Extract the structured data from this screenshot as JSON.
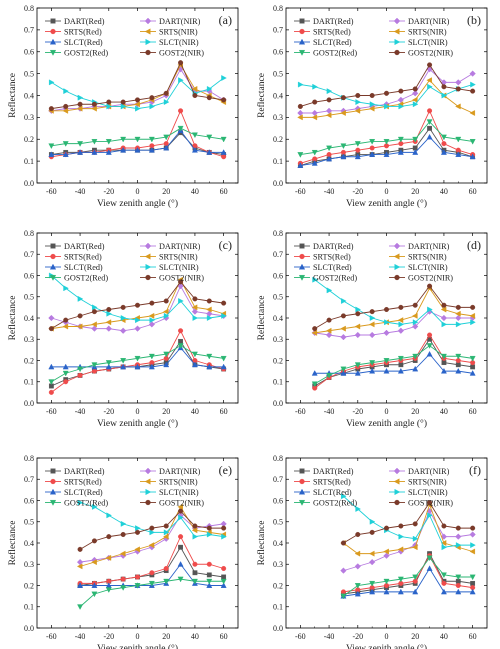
{
  "figure": {
    "shared_xlabel": "View zenith angle (°)",
    "shared_ylabel": "Reflectance"
  },
  "legend_entries": [
    {
      "name": "DART(Red)",
      "color": "#555555",
      "marker": "square"
    },
    {
      "name": "DART(NIR)",
      "color": "#b77be0",
      "marker": "diamond"
    },
    {
      "name": "SRTS(Red)",
      "color": "#ef4b4b",
      "marker": "circle"
    },
    {
      "name": "SRTS(NIR)",
      "color": "#d99a1e",
      "marker": "triangle-left"
    },
    {
      "name": "SLCT(Red)",
      "color": "#2a63c9",
      "marker": "triangle-up"
    },
    {
      "name": "SLCT(NIR)",
      "color": "#1fd0d8",
      "marker": "triangle-right"
    },
    {
      "name": "GOST2(Red)",
      "color": "#2bb673",
      "marker": "triangle-down"
    },
    {
      "name": "GOST2(NIR)",
      "color": "#7a3a2a",
      "marker": "circle"
    }
  ],
  "chart_data": [
    {
      "type": "line",
      "panel_label": "(a)",
      "xlabel": "View zenith angle (°)",
      "ylabel": "Reflectance",
      "xlim": [
        -70,
        70
      ],
      "ylim": [
        0.0,
        0.8
      ],
      "xticks": [
        -60,
        -40,
        -20,
        0,
        20,
        40,
        60
      ],
      "yticks": [
        0.0,
        0.1,
        0.2,
        0.3,
        0.4,
        0.5,
        0.6,
        0.7,
        0.8
      ],
      "x": [
        -60,
        -50,
        -40,
        -30,
        -20,
        -10,
        0,
        10,
        20,
        30,
        40,
        50,
        60
      ],
      "series": [
        {
          "name": "DART(Red)",
          "values": [
            0.13,
            0.14,
            0.14,
            0.15,
            0.15,
            0.15,
            0.15,
            0.15,
            0.16,
            0.23,
            0.16,
            0.14,
            0.13
          ]
        },
        {
          "name": "DART(NIR)",
          "values": [
            0.33,
            0.34,
            0.34,
            0.35,
            0.35,
            0.36,
            0.36,
            0.37,
            0.4,
            0.52,
            0.42,
            0.42,
            0.38
          ]
        },
        {
          "name": "SRTS(Red)",
          "values": [
            0.12,
            0.13,
            0.14,
            0.14,
            0.15,
            0.16,
            0.16,
            0.17,
            0.18,
            0.33,
            0.17,
            0.14,
            0.12
          ]
        },
        {
          "name": "SRTS(NIR)",
          "values": [
            0.33,
            0.33,
            0.34,
            0.34,
            0.35,
            0.35,
            0.36,
            0.38,
            0.41,
            0.54,
            0.43,
            0.4,
            0.37
          ]
        },
        {
          "name": "SLCT(Red)",
          "values": [
            0.13,
            0.13,
            0.14,
            0.14,
            0.14,
            0.15,
            0.15,
            0.15,
            0.16,
            0.24,
            0.15,
            0.14,
            0.14
          ]
        },
        {
          "name": "SLCT(NIR)",
          "values": [
            0.46,
            0.42,
            0.39,
            0.37,
            0.35,
            0.35,
            0.34,
            0.35,
            0.37,
            0.47,
            0.41,
            0.43,
            0.48
          ]
        },
        {
          "name": "GOST2(Red)",
          "values": [
            0.17,
            0.18,
            0.18,
            0.19,
            0.19,
            0.2,
            0.2,
            0.2,
            0.21,
            0.25,
            0.22,
            0.21,
            0.2
          ]
        },
        {
          "name": "GOST2(NIR)",
          "values": [
            0.34,
            0.35,
            0.36,
            0.36,
            0.37,
            0.37,
            0.38,
            0.39,
            0.41,
            0.55,
            0.4,
            0.39,
            0.38
          ]
        }
      ]
    },
    {
      "type": "line",
      "panel_label": "(b)",
      "xlabel": "View zenith angle (°)",
      "ylabel": "Reflectance",
      "xlim": [
        -70,
        70
      ],
      "ylim": [
        0.0,
        0.8
      ],
      "xticks": [
        -60,
        -40,
        -20,
        0,
        20,
        40,
        60
      ],
      "yticks": [
        0.0,
        0.1,
        0.2,
        0.3,
        0.4,
        0.5,
        0.6,
        0.7,
        0.8
      ],
      "x": [
        -60,
        -50,
        -40,
        -30,
        -20,
        -10,
        0,
        10,
        20,
        30,
        40,
        50,
        60
      ],
      "series": [
        {
          "name": "DART(Red)",
          "values": [
            0.08,
            0.1,
            0.11,
            0.12,
            0.13,
            0.13,
            0.14,
            0.15,
            0.16,
            0.25,
            0.15,
            0.14,
            0.12
          ]
        },
        {
          "name": "DART(NIR)",
          "values": [
            0.32,
            0.32,
            0.33,
            0.33,
            0.34,
            0.35,
            0.36,
            0.38,
            0.41,
            0.52,
            0.46,
            0.46,
            0.5
          ]
        },
        {
          "name": "SRTS(Red)",
          "values": [
            0.09,
            0.11,
            0.13,
            0.14,
            0.15,
            0.16,
            0.17,
            0.18,
            0.19,
            0.33,
            0.18,
            0.15,
            0.13
          ]
        },
        {
          "name": "SRTS(NIR)",
          "values": [
            0.3,
            0.3,
            0.31,
            0.32,
            0.33,
            0.34,
            0.35,
            0.36,
            0.38,
            0.47,
            0.4,
            0.35,
            0.32
          ]
        },
        {
          "name": "SLCT(Red)",
          "values": [
            0.08,
            0.09,
            0.11,
            0.12,
            0.12,
            0.13,
            0.13,
            0.14,
            0.14,
            0.21,
            0.14,
            0.13,
            0.12
          ]
        },
        {
          "name": "SLCT(NIR)",
          "values": [
            0.45,
            0.44,
            0.42,
            0.39,
            0.37,
            0.36,
            0.35,
            0.35,
            0.36,
            0.44,
            0.4,
            0.43,
            0.45
          ]
        },
        {
          "name": "GOST2(Red)",
          "values": [
            0.13,
            0.14,
            0.16,
            0.17,
            0.18,
            0.19,
            0.19,
            0.2,
            0.2,
            0.28,
            0.21,
            0.2,
            0.19
          ]
        },
        {
          "name": "GOST2(NIR)",
          "values": [
            0.35,
            0.37,
            0.38,
            0.39,
            0.4,
            0.4,
            0.41,
            0.42,
            0.43,
            0.54,
            0.44,
            0.43,
            0.42
          ]
        }
      ]
    },
    {
      "type": "line",
      "panel_label": "(c)",
      "xlabel": "View zenith angle (°)",
      "ylabel": "Reflectance",
      "xlim": [
        -70,
        70
      ],
      "ylim": [
        0.0,
        0.8
      ],
      "xticks": [
        -60,
        -40,
        -20,
        0,
        20,
        40,
        60
      ],
      "yticks": [
        0.0,
        0.1,
        0.2,
        0.3,
        0.4,
        0.5,
        0.6,
        0.7,
        0.8
      ],
      "x": [
        -60,
        -50,
        -40,
        -30,
        -20,
        -10,
        0,
        10,
        20,
        30,
        40,
        50,
        60
      ],
      "series": [
        {
          "name": "DART(Red)",
          "values": [
            0.08,
            0.11,
            0.13,
            0.15,
            0.16,
            0.17,
            0.17,
            0.18,
            0.19,
            0.29,
            0.18,
            0.17,
            0.16
          ]
        },
        {
          "name": "DART(NIR)",
          "values": [
            0.4,
            0.38,
            0.36,
            0.35,
            0.35,
            0.34,
            0.35,
            0.37,
            0.4,
            0.55,
            0.43,
            0.42,
            0.41
          ]
        },
        {
          "name": "SRTS(Red)",
          "values": [
            0.05,
            0.1,
            0.13,
            0.15,
            0.16,
            0.17,
            0.18,
            0.19,
            0.21,
            0.34,
            0.2,
            0.18,
            0.16
          ]
        },
        {
          "name": "SRTS(NIR)",
          "values": [
            0.35,
            0.36,
            0.36,
            0.37,
            0.38,
            0.39,
            0.4,
            0.41,
            0.43,
            0.58,
            0.45,
            0.44,
            0.42
          ]
        },
        {
          "name": "SLCT(Red)",
          "values": [
            0.17,
            0.17,
            0.17,
            0.17,
            0.17,
            0.17,
            0.17,
            0.17,
            0.18,
            0.26,
            0.18,
            0.17,
            0.17
          ]
        },
        {
          "name": "SLCT(NIR)",
          "values": [
            0.6,
            0.54,
            0.49,
            0.45,
            0.42,
            0.4,
            0.39,
            0.39,
            0.41,
            0.48,
            0.4,
            0.4,
            0.41
          ]
        },
        {
          "name": "GOST2(Red)",
          "values": [
            0.1,
            0.14,
            0.16,
            0.18,
            0.19,
            0.2,
            0.21,
            0.22,
            0.23,
            0.27,
            0.23,
            0.22,
            0.21
          ]
        },
        {
          "name": "GOST2(NIR)",
          "values": [
            0.35,
            0.39,
            0.41,
            0.43,
            0.44,
            0.45,
            0.46,
            0.47,
            0.48,
            0.57,
            0.49,
            0.48,
            0.47
          ]
        }
      ]
    },
    {
      "type": "line",
      "panel_label": "(d)",
      "xlabel": "View zenith angle (°)",
      "ylabel": "Reflectance",
      "xlim": [
        -70,
        70
      ],
      "ylim": [
        0.0,
        0.8
      ],
      "xticks": [
        -60,
        -40,
        -20,
        0,
        20,
        40,
        60
      ],
      "yticks": [
        0.0,
        0.1,
        0.2,
        0.3,
        0.4,
        0.5,
        0.6,
        0.7,
        0.8
      ],
      "x": [
        -50,
        -40,
        -30,
        -20,
        -10,
        0,
        10,
        20,
        30,
        40,
        50,
        60
      ],
      "series": [
        {
          "name": "DART(Red)",
          "values": [
            0.08,
            0.12,
            0.14,
            0.16,
            0.17,
            0.18,
            0.18,
            0.2,
            0.3,
            0.19,
            0.18,
            0.17
          ]
        },
        {
          "name": "DART(NIR)",
          "values": [
            0.33,
            0.32,
            0.31,
            0.32,
            0.32,
            0.33,
            0.34,
            0.36,
            0.43,
            0.4,
            0.4,
            0.4
          ]
        },
        {
          "name": "SRTS(Red)",
          "values": [
            0.07,
            0.12,
            0.15,
            0.17,
            0.18,
            0.19,
            0.2,
            0.21,
            0.32,
            0.21,
            0.2,
            0.19
          ]
        },
        {
          "name": "SRTS(NIR)",
          "values": [
            0.33,
            0.34,
            0.35,
            0.36,
            0.37,
            0.38,
            0.39,
            0.41,
            0.54,
            0.44,
            0.42,
            0.41
          ]
        },
        {
          "name": "SLCT(Red)",
          "values": [
            0.14,
            0.14,
            0.14,
            0.14,
            0.15,
            0.15,
            0.15,
            0.16,
            0.23,
            0.15,
            0.15,
            0.14
          ]
        },
        {
          "name": "SLCT(NIR)",
          "values": [
            0.58,
            0.53,
            0.48,
            0.44,
            0.4,
            0.38,
            0.37,
            0.38,
            0.44,
            0.37,
            0.37,
            0.38
          ]
        },
        {
          "name": "GOST2(Red)",
          "values": [
            0.09,
            0.13,
            0.16,
            0.18,
            0.19,
            0.2,
            0.21,
            0.22,
            0.27,
            0.22,
            0.22,
            0.21
          ]
        },
        {
          "name": "GOST2(NIR)",
          "values": [
            0.35,
            0.39,
            0.41,
            0.42,
            0.43,
            0.44,
            0.45,
            0.46,
            0.55,
            0.46,
            0.45,
            0.45
          ]
        }
      ]
    },
    {
      "type": "line",
      "panel_label": "(e)",
      "xlabel": "View zenith angle (°)",
      "ylabel": "Reflectance",
      "xlim": [
        -70,
        70
      ],
      "ylim": [
        0.0,
        0.8
      ],
      "xticks": [
        -60,
        -40,
        -20,
        0,
        20,
        40,
        60
      ],
      "yticks": [
        0.0,
        0.1,
        0.2,
        0.3,
        0.4,
        0.5,
        0.6,
        0.7,
        0.8
      ],
      "x": [
        -40,
        -30,
        -20,
        -10,
        0,
        10,
        20,
        30,
        40,
        50,
        60
      ],
      "series": [
        {
          "name": "DART(Red)",
          "values": [
            0.2,
            0.21,
            0.22,
            0.23,
            0.24,
            0.25,
            0.27,
            0.38,
            0.26,
            0.25,
            0.24
          ]
        },
        {
          "name": "DART(NIR)",
          "values": [
            0.31,
            0.32,
            0.33,
            0.34,
            0.36,
            0.38,
            0.42,
            0.53,
            0.47,
            0.48,
            0.49
          ]
        },
        {
          "name": "SRTS(Red)",
          "values": [
            0.21,
            0.21,
            0.22,
            0.23,
            0.24,
            0.26,
            0.28,
            0.43,
            0.3,
            0.3,
            0.28
          ]
        },
        {
          "name": "SRTS(NIR)",
          "values": [
            0.29,
            0.31,
            0.33,
            0.35,
            0.37,
            0.39,
            0.43,
            0.57,
            0.46,
            0.45,
            0.44
          ]
        },
        {
          "name": "SLCT(Red)",
          "values": [
            0.2,
            0.2,
            0.2,
            0.2,
            0.2,
            0.2,
            0.21,
            0.3,
            0.21,
            0.2,
            0.2
          ]
        },
        {
          "name": "SLCT(NIR)",
          "values": [
            0.59,
            0.57,
            0.53,
            0.49,
            0.47,
            0.45,
            0.45,
            0.52,
            0.43,
            0.44,
            0.43
          ]
        },
        {
          "name": "GOST2(Red)",
          "values": [
            0.1,
            0.16,
            0.18,
            0.19,
            0.2,
            0.21,
            0.22,
            0.23,
            0.22,
            0.22,
            0.22
          ]
        },
        {
          "name": "GOST2(NIR)",
          "values": [
            0.37,
            0.41,
            0.43,
            0.44,
            0.45,
            0.47,
            0.48,
            0.55,
            0.48,
            0.47,
            0.47
          ]
        }
      ]
    },
    {
      "type": "line",
      "panel_label": "(f)",
      "xlabel": "View zenith angle (°)",
      "ylabel": "Reflectance",
      "xlim": [
        -70,
        70
      ],
      "ylim": [
        0.0,
        0.8
      ],
      "xticks": [
        -60,
        -40,
        -20,
        0,
        20,
        40,
        60
      ],
      "yticks": [
        0.0,
        0.1,
        0.2,
        0.3,
        0.4,
        0.5,
        0.6,
        0.7,
        0.8
      ],
      "x": [
        -30,
        -20,
        -10,
        0,
        10,
        20,
        30,
        40,
        50,
        60
      ],
      "series": [
        {
          "name": "DART(Red)",
          "values": [
            0.16,
            0.17,
            0.18,
            0.19,
            0.2,
            0.21,
            0.35,
            0.22,
            0.22,
            0.21
          ]
        },
        {
          "name": "DART(NIR)",
          "values": [
            0.27,
            0.29,
            0.31,
            0.34,
            0.36,
            0.39,
            0.55,
            0.43,
            0.43,
            0.44
          ]
        },
        {
          "name": "SRTS(Red)",
          "values": [
            0.17,
            0.18,
            0.19,
            0.2,
            0.21,
            0.22,
            0.34,
            0.21,
            0.2,
            0.19
          ]
        },
        {
          "name": "SRTS(NIR)",
          "values": [
            0.4,
            0.35,
            0.35,
            0.36,
            0.37,
            0.38,
            0.58,
            0.4,
            0.38,
            0.36
          ]
        },
        {
          "name": "SLCT(Red)",
          "values": [
            0.15,
            0.16,
            0.17,
            0.17,
            0.17,
            0.17,
            0.28,
            0.17,
            0.17,
            0.17
          ]
        },
        {
          "name": "SLCT(NIR)",
          "values": [
            0.62,
            0.56,
            0.5,
            0.46,
            0.43,
            0.42,
            0.53,
            0.38,
            0.39,
            0.39
          ]
        },
        {
          "name": "GOST2(Red)",
          "values": [
            0.15,
            0.2,
            0.21,
            0.22,
            0.23,
            0.24,
            0.33,
            0.25,
            0.24,
            0.24
          ]
        },
        {
          "name": "GOST2(NIR)",
          "values": [
            0.4,
            0.44,
            0.45,
            0.47,
            0.48,
            0.49,
            0.59,
            0.48,
            0.47,
            0.47
          ]
        }
      ]
    }
  ]
}
